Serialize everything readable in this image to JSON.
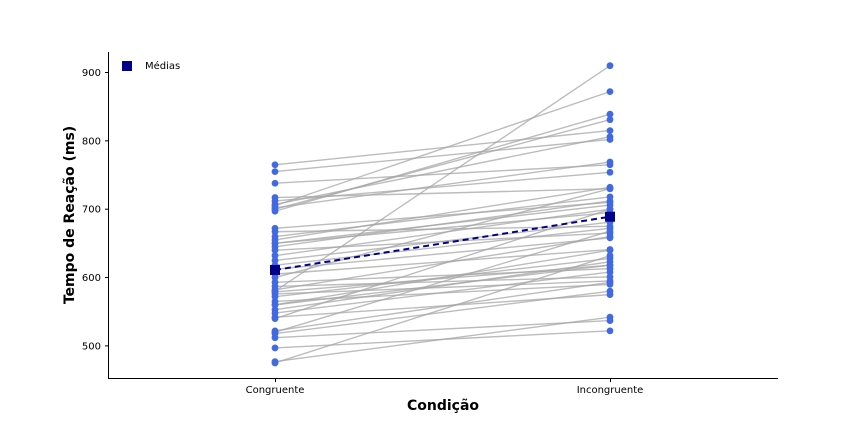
{
  "chart_data": {
    "type": "line",
    "xlabel": "Condição",
    "ylabel": "Tempo de Reação (ms)",
    "categories": [
      "Congruente",
      "Incongruente"
    ],
    "ylim": [
      453,
      930
    ],
    "yticks": [
      500,
      600,
      700,
      800,
      900
    ],
    "legend": {
      "label": "Médias",
      "placement": "top-left"
    },
    "colors": {
      "participant_line": "#a6a6a6",
      "participant_point": "#4169e1",
      "mean": "#00008b"
    },
    "participants": [
      [
        477,
        542
      ],
      [
        497,
        522
      ],
      [
        512,
        537
      ],
      [
        518,
        580
      ],
      [
        522,
        593
      ],
      [
        542,
        575
      ],
      [
        548,
        608
      ],
      [
        553,
        623
      ],
      [
        560,
        640
      ],
      [
        565,
        590
      ],
      [
        572,
        628
      ],
      [
        576,
        595
      ],
      [
        579,
        618
      ],
      [
        582,
        660
      ],
      [
        587,
        601
      ],
      [
        593,
        613
      ],
      [
        605,
        641
      ],
      [
        612,
        658
      ],
      [
        618,
        672
      ],
      [
        625,
        681
      ],
      [
        632,
        700
      ],
      [
        640,
        665
      ],
      [
        645,
        712
      ],
      [
        650,
        706
      ],
      [
        655,
        732
      ],
      [
        660,
        718
      ],
      [
        667,
        675
      ],
      [
        672,
        710
      ],
      [
        697,
        839
      ],
      [
        702,
        769
      ],
      [
        707,
        806
      ],
      [
        712,
        754
      ],
      [
        717,
        730
      ],
      [
        738,
        765
      ],
      [
        755,
        802
      ],
      [
        765,
        815
      ],
      [
        520,
        668
      ],
      [
        475,
        632
      ],
      [
        560,
        618
      ],
      [
        540,
        700
      ],
      [
        650,
        695
      ],
      [
        600,
        730
      ],
      [
        705,
        872
      ],
      [
        580,
        910
      ],
      [
        700,
        831
      ]
    ],
    "means": [
      611,
      689
    ]
  }
}
